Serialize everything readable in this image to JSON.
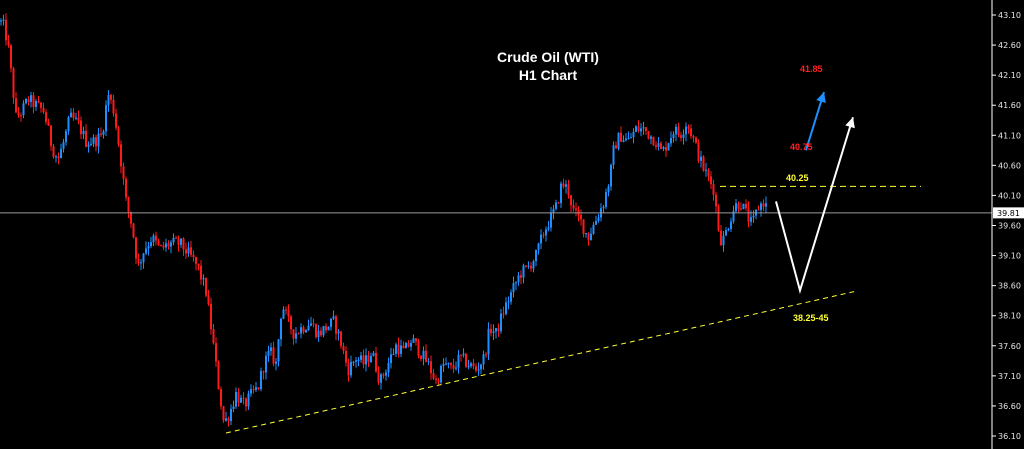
{
  "chart_data": {
    "type": "candlestick",
    "title": "Crude Oil (WTI)",
    "subtitle": "H1 Chart",
    "ylim": [
      36.05,
      43.2
    ],
    "y_ticks": [
      "43.10",
      "42.60",
      "42.10",
      "41.60",
      "41.10",
      "40.60",
      "40.10",
      "39.60",
      "39.10",
      "38.60",
      "38.10",
      "37.60",
      "37.10",
      "36.60",
      "36.10"
    ],
    "current_price": "39.81",
    "colors": {
      "up": "#1e8fff",
      "down": "#ff1a1a",
      "background": "#000000",
      "axis": "#ffffff",
      "trend": "#ffff33",
      "arrow_white": "#ffffff",
      "arrow_blue": "#1e90ff"
    },
    "anchors": [
      [
        0,
        43.0
      ],
      [
        4,
        42.9
      ],
      [
        8,
        42.6
      ],
      [
        12,
        42.0
      ],
      [
        16,
        41.4
      ],
      [
        22,
        41.5
      ],
      [
        28,
        41.7
      ],
      [
        36,
        41.6
      ],
      [
        44,
        41.5
      ],
      [
        52,
        40.9
      ],
      [
        58,
        40.7
      ],
      [
        64,
        41.0
      ],
      [
        70,
        41.4
      ],
      [
        78,
        41.3
      ],
      [
        86,
        41.0
      ],
      [
        94,
        41.0
      ],
      [
        102,
        41.1
      ],
      [
        108,
        41.8
      ],
      [
        114,
        41.5
      ],
      [
        120,
        40.8
      ],
      [
        126,
        40.0
      ],
      [
        132,
        39.6
      ],
      [
        138,
        38.9
      ],
      [
        144,
        39.2
      ],
      [
        152,
        39.4
      ],
      [
        160,
        39.2
      ],
      [
        170,
        39.3
      ],
      [
        180,
        39.3
      ],
      [
        190,
        39.1
      ],
      [
        198,
        38.9
      ],
      [
        206,
        38.5
      ],
      [
        212,
        37.8
      ],
      [
        218,
        37.0
      ],
      [
        224,
        36.3
      ],
      [
        230,
        36.5
      ],
      [
        236,
        36.8
      ],
      [
        244,
        36.6
      ],
      [
        252,
        36.8
      ],
      [
        258,
        36.9
      ],
      [
        264,
        37.3
      ],
      [
        270,
        37.5
      ],
      [
        276,
        37.3
      ],
      [
        282,
        38.3
      ],
      [
        288,
        38.0
      ],
      [
        294,
        37.8
      ],
      [
        302,
        37.9
      ],
      [
        310,
        38.0
      ],
      [
        318,
        37.8
      ],
      [
        326,
        37.9
      ],
      [
        334,
        38.0
      ],
      [
        340,
        37.7
      ],
      [
        348,
        37.2
      ],
      [
        356,
        37.4
      ],
      [
        364,
        37.3
      ],
      [
        372,
        37.5
      ],
      [
        380,
        37.0
      ],
      [
        388,
        37.3
      ],
      [
        396,
        37.6
      ],
      [
        404,
        37.5
      ],
      [
        412,
        37.7
      ],
      [
        420,
        37.5
      ],
      [
        428,
        37.3
      ],
      [
        436,
        37.0
      ],
      [
        444,
        37.3
      ],
      [
        452,
        37.2
      ],
      [
        460,
        37.4
      ],
      [
        468,
        37.3
      ],
      [
        476,
        37.2
      ],
      [
        484,
        37.4
      ],
      [
        490,
        37.9
      ],
      [
        496,
        37.8
      ],
      [
        504,
        38.2
      ],
      [
        512,
        38.5
      ],
      [
        520,
        38.8
      ],
      [
        528,
        38.9
      ],
      [
        536,
        39.1
      ],
      [
        544,
        39.5
      ],
      [
        550,
        39.7
      ],
      [
        556,
        39.9
      ],
      [
        562,
        40.3
      ],
      [
        568,
        40.2
      ],
      [
        574,
        39.8
      ],
      [
        580,
        39.7
      ],
      [
        588,
        39.4
      ],
      [
        596,
        39.7
      ],
      [
        604,
        40.0
      ],
      [
        610,
        40.4
      ],
      [
        614,
        40.9
      ],
      [
        620,
        41.1
      ],
      [
        628,
        41.0
      ],
      [
        636,
        41.2
      ],
      [
        644,
        41.2
      ],
      [
        650,
        41.1
      ],
      [
        656,
        41.0
      ],
      [
        662,
        40.8
      ],
      [
        668,
        41.0
      ],
      [
        674,
        41.2
      ],
      [
        680,
        41.1
      ],
      [
        686,
        41.3
      ],
      [
        690,
        41.2
      ],
      [
        696,
        40.9
      ],
      [
        702,
        40.6
      ],
      [
        708,
        40.4
      ],
      [
        714,
        40.2
      ],
      [
        718,
        39.6
      ],
      [
        722,
        39.3
      ],
      [
        728,
        39.6
      ],
      [
        734,
        39.9
      ],
      [
        740,
        40.0
      ],
      [
        746,
        39.8
      ],
      [
        752,
        39.6
      ],
      [
        758,
        39.9
      ],
      [
        764,
        40.0
      ],
      [
        768,
        39.85
      ]
    ],
    "trendline": {
      "x": [
        226,
        854
      ],
      "y": [
        36.15,
        38.5
      ]
    },
    "resistance": {
      "x": [
        720,
        921
      ],
      "y": [
        40.25,
        40.25
      ],
      "label": "40.25"
    },
    "support_label": "38.25-45",
    "path_white": {
      "x": [
        776,
        800,
        853
      ],
      "y": [
        40.0,
        38.52,
        41.4
      ]
    },
    "arrow_blue": {
      "x": [
        806,
        824
      ],
      "y": [
        40.85,
        41.82
      ]
    },
    "labels": {
      "resistance": "40.25",
      "support": "38.25-45",
      "mid_target": "40.75",
      "top_target": "41.85"
    }
  }
}
